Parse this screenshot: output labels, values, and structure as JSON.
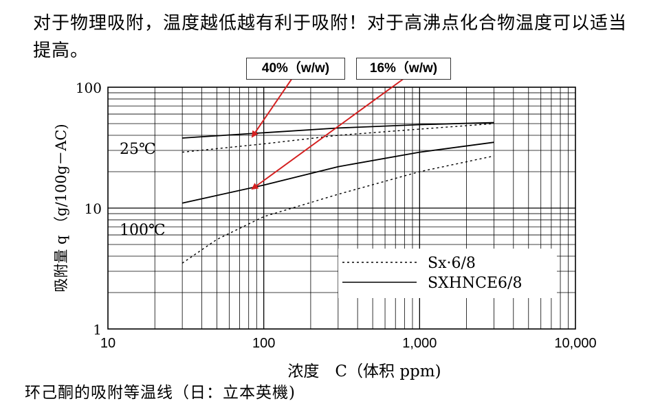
{
  "header_note": "对于物理吸附，温度越低越有利于吸附！对于高沸点化合物温度可以适当提高。",
  "callouts": [
    {
      "label": "40%（w/w)",
      "color": "#d42020"
    },
    {
      "label": "16%（w/w)",
      "color": "#d42020"
    }
  ],
  "caption": "环己酮的吸附等温线（日：立本英機)",
  "chart_data": {
    "type": "line",
    "x_scale": "log",
    "y_scale": "log",
    "xlim": [
      10,
      10000
    ],
    "ylim": [
      1,
      100
    ],
    "x_ticks": [
      "10",
      "100",
      "1,000",
      "10,000"
    ],
    "y_ticks": [
      "1",
      "10",
      "100"
    ],
    "xlabel": "浓度　C（体积 ppm)",
    "ylabel": "吸附量 q （g/100g－AC)",
    "legend_position": "bottom-right",
    "grid": true,
    "annotations": [
      "25℃",
      "100℃"
    ],
    "series": [
      {
        "name": "Sx·6/8",
        "style": "dashed",
        "group": "25℃",
        "x": [
          30,
          100,
          300,
          1000,
          3000
        ],
        "y": [
          29,
          34,
          40,
          45,
          50
        ]
      },
      {
        "name": "SXHNCE6/8",
        "style": "solid",
        "group": "25℃",
        "x": [
          30,
          100,
          300,
          1000,
          3000
        ],
        "y": [
          38,
          42,
          46,
          49,
          51
        ]
      },
      {
        "name": "Sx·6/8",
        "style": "dashed",
        "group": "100℃",
        "x": [
          30,
          50,
          100,
          300,
          1000,
          3000
        ],
        "y": [
          3.5,
          5.5,
          8.5,
          13,
          20,
          27
        ]
      },
      {
        "name": "SXHNCE6/8",
        "style": "solid",
        "group": "100℃",
        "x": [
          30,
          100,
          300,
          1000,
          3000
        ],
        "y": [
          11,
          15.5,
          22,
          29,
          35
        ]
      }
    ]
  }
}
